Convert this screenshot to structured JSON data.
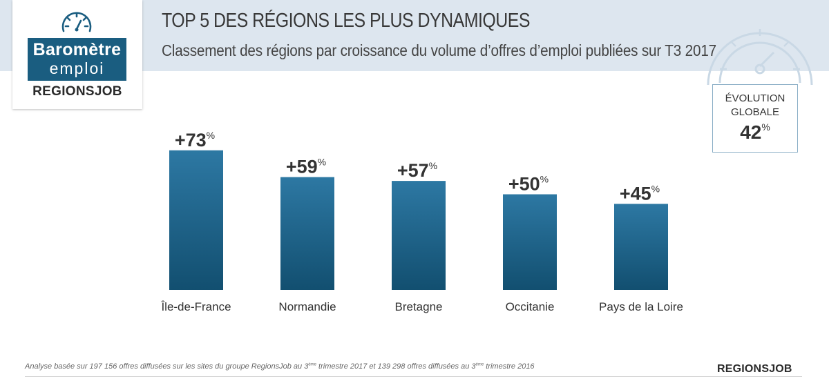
{
  "logo": {
    "line1": "Baromètre",
    "line2": "emploi",
    "brand": "REGIONSJOB",
    "icon": "gauge-icon"
  },
  "header": {
    "title": "TOP 5 DES RÉGIONS LES PLUS DYNAMIQUES",
    "subtitle": "Classement des régions par croissance du volume d’offres d’emploi publiées sur T3 2017"
  },
  "evolution": {
    "label": "ÉVOLUTION\nGLOBALE",
    "value": "42",
    "unit": "%"
  },
  "chart_data": {
    "type": "bar",
    "categories": [
      "Île-de-France",
      "Normandie",
      "Bretagne",
      "Occitanie",
      "Pays de la Loire"
    ],
    "values": [
      73,
      59,
      57,
      50,
      45
    ],
    "value_labels": [
      "+73",
      "+59",
      "+57",
      "+50",
      "+45"
    ],
    "value_unit": "%",
    "title": "TOP 5 DES RÉGIONS LES PLUS DYNAMIQUES",
    "xlabel": "",
    "ylabel": "",
    "grid": false,
    "colors": {
      "bar_top": "#2d78a3",
      "bar_bottom": "#124f70"
    }
  },
  "footer": {
    "note_part1": "Analyse basée sur 197 156 offres diffusées sur les sites du groupe RegionsJob au 3",
    "note_sup1": "ème",
    "note_part2": " trimestre 2017 et 139 298 offres diffusées au 3",
    "note_sup2": "ème",
    "note_part3": " trimestre 2016",
    "brand": "REGIONSJOB"
  },
  "colors": {
    "header_band": "#dde6ef",
    "brand_blue": "#1a5d80",
    "text": "#333333",
    "box_border": "#8aaec6"
  }
}
